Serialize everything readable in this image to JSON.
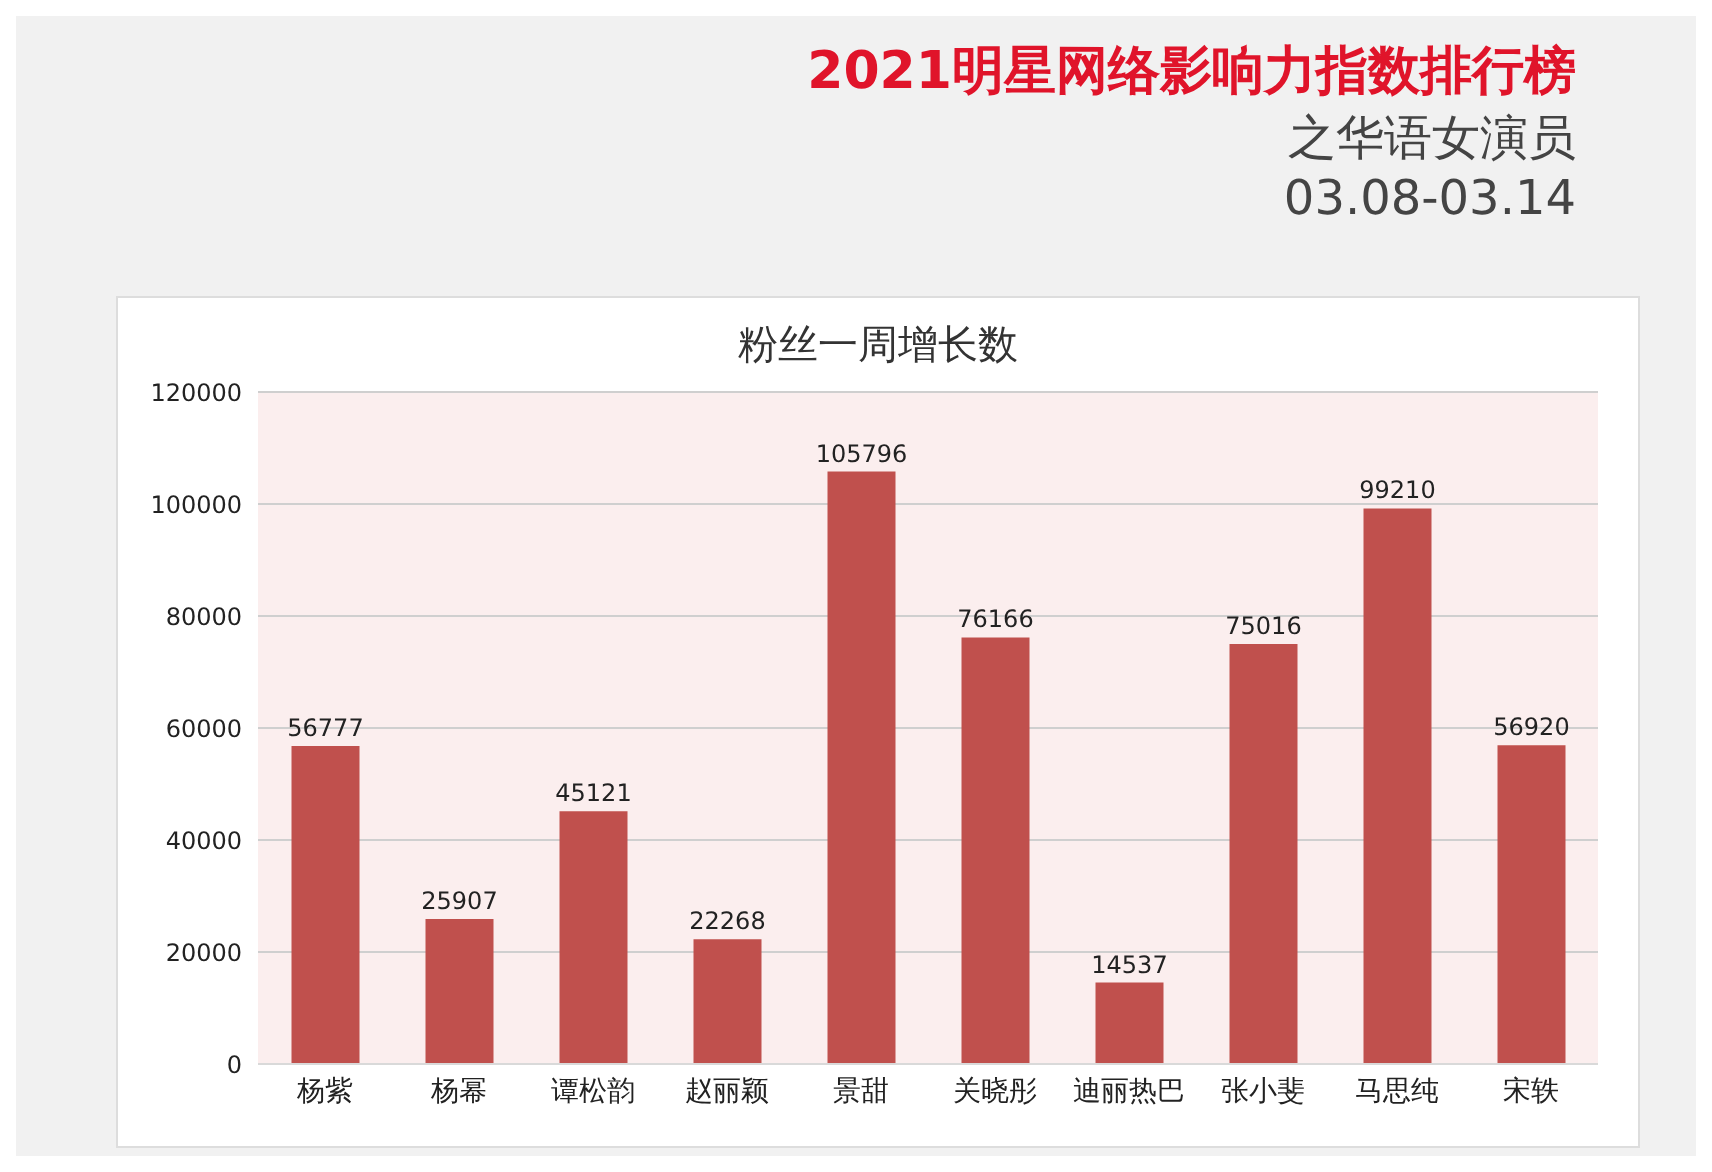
{
  "chart_data": {
    "type": "bar",
    "title": "2021明星网络影响力指数排行榜",
    "subtitle": "之华语女演员",
    "annotations": [
      "03.08-03.14",
      "粉丝一周增长数"
    ],
    "categories": [
      "杨紫",
      "杨幂",
      "谭松韵",
      "赵丽颖",
      "景甜",
      "关晓彤",
      "迪丽热巴",
      "张小斐",
      "马思纯",
      "宋轶"
    ],
    "values": [
      56777,
      25907,
      45121,
      22268,
      105796,
      76166,
      14537,
      75016,
      99210,
      56920
    ],
    "color": "#c0504d",
    "ylim": [
      0,
      120000
    ],
    "yticks": [
      0,
      20000,
      40000,
      60000,
      80000,
      100000,
      120000
    ],
    "grid": "y",
    "data_labels": true
  }
}
